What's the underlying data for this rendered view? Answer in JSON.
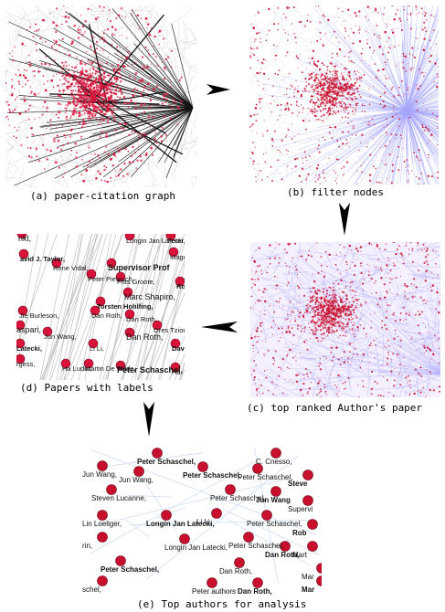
{
  "captions": {
    "a": "(a) paper-citation graph",
    "b": "(b) filter nodes",
    "c": "(c) top ranked Author's paper",
    "d": "(d) Papers with labels",
    "e": "(e) Top authors for analysis"
  },
  "colors": {
    "node_red": "#d8143a",
    "node_crimson": "#c8102e",
    "edge_black": "#111111",
    "edge_blue": "#3a3aff",
    "edge_gray": "#b8b8b8"
  },
  "panel_d_labels": [
    "rikl,",
    "avid J. Taylor,",
    "Rene Vidal,",
    "Longin Jan Latecki,",
    "Peter O",
    "Supervisor Prof",
    "Magn",
    "Peter Pietzuch,",
    "Frits Groote,",
    "Rob",
    "Marc Shapiro,",
    "Jie Burleson,",
    "Dan Roth,",
    "Torsten Hohlfing,",
    "Dan Roth,",
    "aspari,",
    "Jun Wang,",
    "Latecki,",
    "Li Li,",
    "Ores Tzion",
    "Dan Roth,",
    "Davi",
    "rgess,",
    "Ha Ludin,",
    "Martin De Wilde,",
    "Peter Schaschel,",
    "Ha"
  ],
  "panel_e_labels": [
    "Peter Schaschel,",
    "C. Cnesso,",
    "Jun Wang,",
    "Peter Schaschel,",
    "Jun Wang,",
    "Peter Schaschel,",
    "Steve",
    "Steven Lucanne,",
    "Peter Schaschel,",
    "Jun Wang",
    "Supervi",
    "Lin Loeliger,",
    "Longin Jan Latecki,",
    "Li Li,",
    "Peter Schaschel,",
    "Rob",
    "rin,",
    "Peter Schaschel,",
    "Dan Roth,",
    "Longin Jan Latecki,",
    "Dan Roth,",
    "Peter Schaschel,",
    "Mart",
    "Peter authors",
    "Dan Roth,",
    "schel,",
    "Mar",
    "Mar"
  ]
}
